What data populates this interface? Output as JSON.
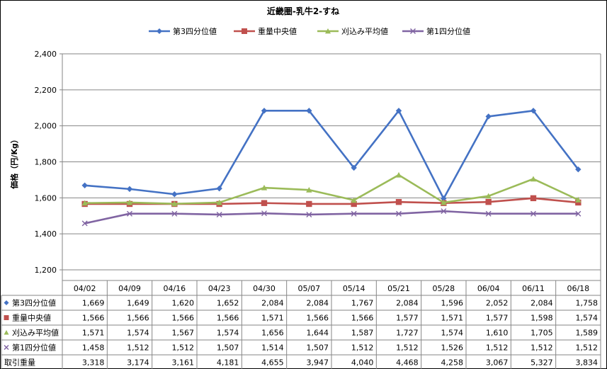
{
  "chart_data": {
    "type": "line",
    "title": "近畿圏-乳牛2-すね",
    "ylabel": "価格（円/Kg）",
    "ylim": [
      1200,
      2400
    ],
    "yticks": [
      1200,
      1400,
      1600,
      1800,
      2000,
      2200,
      2400
    ],
    "ytick_labels": [
      "1,200",
      "1,400",
      "1,600",
      "1,800",
      "2,000",
      "2,200",
      "2,400"
    ],
    "grid": true,
    "legend_position": "top",
    "categories": [
      "04/02",
      "04/09",
      "04/16",
      "04/23",
      "04/30",
      "05/07",
      "05/14",
      "05/21",
      "05/28",
      "06/04",
      "06/11",
      "06/18"
    ],
    "series": [
      {
        "name": "第3四分位値",
        "color": "#4472c4",
        "marker": "diamond",
        "values": [
          1669,
          1649,
          1620,
          1652,
          2084,
          2084,
          1767,
          2084,
          1596,
          2052,
          2084,
          1758
        ],
        "labels": [
          "1,669",
          "1,649",
          "1,620",
          "1,652",
          "2,084",
          "2,084",
          "1,767",
          "2,084",
          "1,596",
          "2,052",
          "2,084",
          "1,758"
        ]
      },
      {
        "name": "重量中央値",
        "color": "#c0504d",
        "marker": "square",
        "values": [
          1566,
          1566,
          1566,
          1566,
          1571,
          1566,
          1566,
          1577,
          1571,
          1577,
          1598,
          1574
        ],
        "labels": [
          "1,566",
          "1,566",
          "1,566",
          "1,566",
          "1,571",
          "1,566",
          "1,566",
          "1,577",
          "1,571",
          "1,577",
          "1,598",
          "1,574"
        ]
      },
      {
        "name": "刈込み平均値",
        "color": "#9bbb59",
        "marker": "triangle",
        "values": [
          1571,
          1574,
          1567,
          1574,
          1656,
          1644,
          1587,
          1727,
          1574,
          1610,
          1705,
          1589
        ],
        "labels": [
          "1,571",
          "1,574",
          "1,567",
          "1,574",
          "1,656",
          "1,644",
          "1,587",
          "1,727",
          "1,574",
          "1,610",
          "1,705",
          "1,589"
        ]
      },
      {
        "name": "第1四分位値",
        "color": "#8064a2",
        "marker": "x",
        "values": [
          1458,
          1512,
          1512,
          1507,
          1514,
          1507,
          1512,
          1512,
          1526,
          1512,
          1512,
          1512
        ],
        "labels": [
          "1,458",
          "1,512",
          "1,512",
          "1,507",
          "1,514",
          "1,507",
          "1,512",
          "1,512",
          "1,526",
          "1,512",
          "1,512",
          "1,512"
        ]
      }
    ],
    "extra_row": {
      "name": "取引重量",
      "values": [
        3318,
        3174,
        3161,
        4181,
        4655,
        3947,
        4040,
        4468,
        4258,
        3067,
        5327,
        3834
      ],
      "labels": [
        "3,318",
        "3,174",
        "3,161",
        "4,181",
        "4,655",
        "3,947",
        "4,040",
        "4,468",
        "4,258",
        "3,067",
        "5,327",
        "3,834"
      ]
    }
  }
}
